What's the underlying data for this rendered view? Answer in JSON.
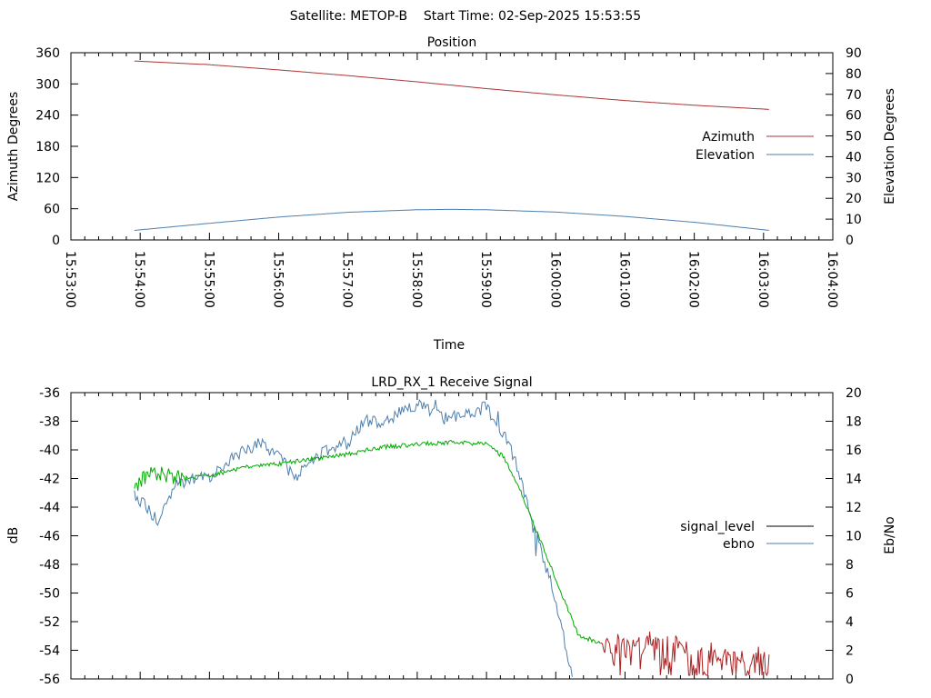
{
  "header": {
    "title": "Satellite: METOP-B    Start Time: 02-Sep-2025 15:53:55"
  },
  "colors": {
    "azimuth": "#aa3333",
    "elevation": "#4d7fad",
    "signal_level_legend": "#000000",
    "signal_green": "#00aa00",
    "signal_red": "#aa2222",
    "ebno": "#4d7fad",
    "axis": "#000000",
    "background": "#ffffff"
  },
  "chart_data": [
    {
      "type": "line",
      "title": "Position",
      "xlabel": "Time",
      "ylabel": "Azimuth Degrees",
      "y2label": "Elevation Degrees",
      "xlim": [
        "15:53:00",
        "16:04:00"
      ],
      "ylim": [
        0,
        360
      ],
      "y2lim": [
        0,
        90
      ],
      "x_tick_labels": [
        "15:53:00",
        "15:54:00",
        "15:55:00",
        "15:56:00",
        "15:57:00",
        "15:58:00",
        "15:59:00",
        "16:00:00",
        "16:01:00",
        "16:02:00",
        "16:03:00",
        "16:04:00"
      ],
      "y_tick_labels": [
        "0",
        "60",
        "120",
        "180",
        "240",
        "300",
        "360"
      ],
      "y2_tick_labels": [
        "0",
        "10",
        "20",
        "30",
        "40",
        "50",
        "60",
        "70",
        "80",
        "90"
      ],
      "legend": "right",
      "grid": false,
      "series": [
        {
          "name": "Azimuth",
          "axis": "y",
          "x": [
            "15:53:55",
            "15:55:00",
            "15:56:00",
            "15:57:00",
            "15:58:00",
            "15:59:00",
            "16:00:00",
            "16:01:00",
            "16:02:00",
            "16:03:05"
          ],
          "values": [
            344,
            337,
            327,
            316,
            304,
            291,
            279,
            268,
            259,
            251
          ]
        },
        {
          "name": "Elevation",
          "axis": "y2",
          "x": [
            "15:53:55",
            "15:55:00",
            "15:56:00",
            "15:57:00",
            "15:58:00",
            "15:58:30",
            "15:59:00",
            "16:00:00",
            "16:01:00",
            "16:02:00",
            "16:03:05"
          ],
          "values": [
            4.6,
            8.0,
            11.0,
            13.3,
            14.5,
            14.7,
            14.5,
            13.4,
            11.3,
            8.5,
            4.6
          ]
        }
      ]
    },
    {
      "type": "line",
      "title": "LRD_RX_1 Receive Signal",
      "ylabel": "dB",
      "y2label": "Eb/No",
      "xlim": [
        "15:53:00",
        "16:04:00"
      ],
      "ylim": [
        -56,
        -36
      ],
      "y2lim": [
        0,
        20
      ],
      "y_tick_labels": [
        "-56",
        "-54",
        "-52",
        "-50",
        "-48",
        "-46",
        "-44",
        "-42",
        "-40",
        "-38",
        "-36"
      ],
      "y2_tick_labels": [
        "0",
        "2",
        "4",
        "6",
        "8",
        "10",
        "12",
        "14",
        "16",
        "18",
        "20"
      ],
      "legend": "right",
      "grid": false,
      "series": [
        {
          "name": "signal_level",
          "axis": "y",
          "x": [
            "15:53:55",
            "15:54:10",
            "15:54:30",
            "15:55:00",
            "15:55:30",
            "15:56:00",
            "15:56:30",
            "15:57:00",
            "15:57:30",
            "15:58:00",
            "15:58:30",
            "15:59:00",
            "15:59:15",
            "15:59:30",
            "15:59:45",
            "16:00:00",
            "16:00:10",
            "16:00:20",
            "16:00:40",
            "16:01:00",
            "16:01:30",
            "16:02:00",
            "16:02:30",
            "16:03:05"
          ],
          "values": [
            -42.5,
            -41.5,
            -42.0,
            -41.8,
            -41.2,
            -41.0,
            -40.6,
            -40.3,
            -39.8,
            -39.6,
            -39.5,
            -39.6,
            -40.5,
            -43.0,
            -46.0,
            -49.0,
            -51.0,
            -53.0,
            -53.5,
            -53.3,
            -53.0,
            -53.6,
            -54.0,
            -54.2
          ]
        },
        {
          "name": "ebno",
          "axis": "y2",
          "x": [
            "15:53:55",
            "15:54:15",
            "15:54:30",
            "15:55:00",
            "15:55:30",
            "15:55:45",
            "15:56:00",
            "15:56:15",
            "15:56:30",
            "15:57:00",
            "15:57:15",
            "15:57:30",
            "15:58:00",
            "15:58:20",
            "15:58:45",
            "15:59:00",
            "15:59:20",
            "15:59:40",
            "16:00:00",
            "16:00:15"
          ],
          "values": [
            13.0,
            11.0,
            13.5,
            14.2,
            16.0,
            16.5,
            15.5,
            14.0,
            15.5,
            16.5,
            18.0,
            18.0,
            19.2,
            18.3,
            18.5,
            19.0,
            16.5,
            11.0,
            5.5,
            0.0
          ]
        }
      ]
    }
  ]
}
